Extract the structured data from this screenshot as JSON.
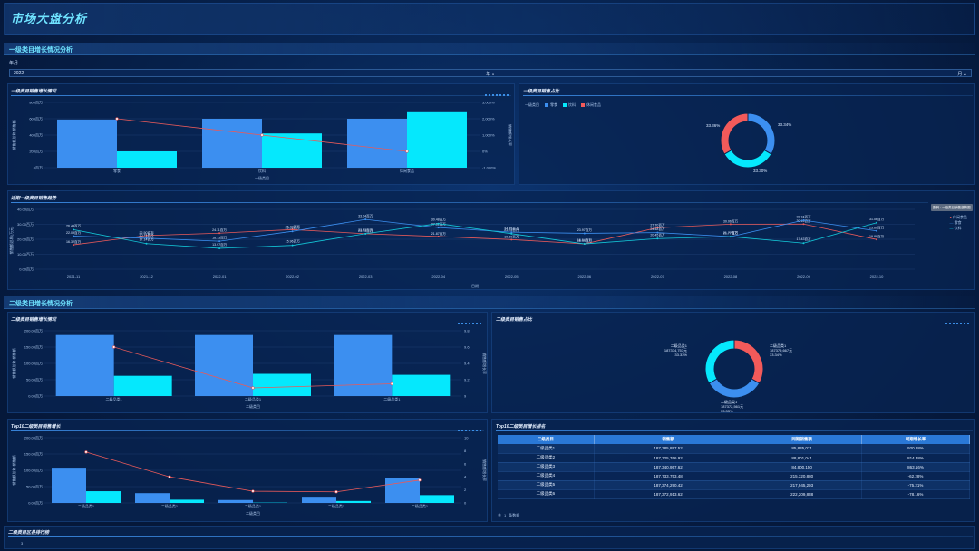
{
  "header": {
    "title": "市场大盘分析"
  },
  "section1": {
    "title": "一级类目增长情况分析"
  },
  "filter": {
    "label": "年月",
    "year_value": "2022",
    "year_unit": "年",
    "month_unit": "月"
  },
  "panel_l1_growth": {
    "title": "一级类目销售增长情况",
    "ylabel": "销售额总和·销售额",
    "y2label": "销售额增长率",
    "xlabel": "一级类目",
    "yticks": [
      "0百万",
      "200百万",
      "400百万",
      "600百万",
      "800百万"
    ],
    "y2ticks": [
      "-1,000%",
      "0%",
      "1,000%",
      "2,000%",
      "3,000%"
    ]
  },
  "panel_l1_share": {
    "title": "一级类目销售占比",
    "legend_title": "一级类目",
    "legend": [
      "零食",
      "饮料",
      "休闲食品"
    ],
    "labels": [
      "33.34%",
      "33.30%",
      "33.36%"
    ]
  },
  "panel_trend": {
    "title": "近期一级类目销售趋势",
    "ylabel": "销售额总和(万元)",
    "xlabel": "日期",
    "yticks": [
      "0.00百万",
      "10.00百万",
      "20.00百万",
      "30.00百万",
      "40.00百万"
    ],
    "tooltip": "图例 · 一级类目销售趋势图",
    "legend": [
      "休闲食品",
      "零食",
      "饮料"
    ]
  },
  "section2": {
    "title": "二级类目增长情况分析"
  },
  "panel_l2_growth": {
    "title": "二级类目销售增长情况",
    "ylabel": "销售额总和·销售额",
    "y2label": "销售额增长率",
    "xlabel": "二级类目",
    "yticks": [
      "0.00百万",
      "50.00百万",
      "100.00百万",
      "150.00百万",
      "200.00百万"
    ],
    "y2ticks": [
      "9",
      "9.2",
      "9.4",
      "9.6",
      "9.8"
    ]
  },
  "panel_l2_share": {
    "title": "二级类目销售占比",
    "labels": [
      {
        "name": "二级品类1",
        "value": "187374,757元",
        "pct": "33.33%"
      },
      {
        "name": "二级品类1",
        "value": "187379,667元",
        "pct": "33.34%"
      },
      {
        "name": "二级品类1",
        "value": "187372,561元",
        "pct": "33.33%"
      }
    ]
  },
  "panel_top10_growth": {
    "title": "Top10二级类目销售增长",
    "ylabel": "销售额总和·销售额",
    "y2label": "销售额增长率",
    "xlabel": "二级类目",
    "yticks": [
      "0.00百万",
      "50.00百万",
      "100.00百万",
      "150.00百万",
      "200.00百万"
    ],
    "y2ticks": [
      "0",
      "2",
      "4",
      "6",
      "8",
      "10"
    ]
  },
  "panel_top10_table": {
    "title": "Top10二级类目增长排名",
    "columns": [
      "二级类目",
      "销售额",
      "同期销售额",
      "同期增长率"
    ],
    "rows": [
      [
        "二级品类1",
        "187,385,897.52",
        "85,835,071",
        "920.88%"
      ],
      [
        "二级品类2",
        "187,325,766.92",
        "88,801,041",
        "814.38%"
      ],
      [
        "二级品类3",
        "187,340,957.62",
        "84,800,150",
        "863.16%"
      ],
      [
        "二级品类4",
        "187,733,753.48",
        "215,320,880",
        "-62.28%"
      ],
      [
        "二级品类5",
        "187,374,290.42",
        "217,945,293",
        "-75.21%"
      ],
      [
        "二级品类6",
        "187,372,913.62",
        "222,209,838",
        "-78.16%"
      ]
    ],
    "pagination": {
      "total_label": "共",
      "count": "1",
      "unit": "条数据"
    }
  },
  "section3": {
    "title": "二级类目区县排行榜"
  },
  "bottom_value": "3",
  "chart_data": [
    {
      "type": "bar",
      "title": "一级类目销售增长情况",
      "categories": [
        "零食",
        "饮料",
        "休闲食品"
      ],
      "series": [
        {
          "name": "销售额",
          "values": [
            590,
            600,
            600
          ]
        },
        {
          "name": "同期销售额",
          "values": [
            200,
            420,
            680
          ]
        },
        {
          "name": "销售额增长率",
          "values": [
            2000,
            1000,
            0
          ]
        }
      ],
      "ylim": [
        0,
        800
      ],
      "y2lim": [
        -1000,
        3000
      ]
    },
    {
      "type": "pie",
      "title": "一级类目销售占比",
      "labels": [
        "零食",
        "饮料",
        "休闲食品"
      ],
      "values": [
        33.34,
        33.3,
        33.36
      ]
    },
    {
      "type": "line",
      "title": "近期一级类目销售趋势",
      "x": [
        "2021-11",
        "2021-12",
        "2022-01",
        "2022-02",
        "2022-03",
        "2022-04",
        "2022-05",
        "2022-06",
        "2022-07",
        "2022-08",
        "2022-09",
        "2022-10"
      ],
      "series": [
        {
          "name": "休闲食品",
          "values": [
            16.32,
            22.5,
            24.11,
            26.49,
            23.73,
            21.87,
            19.8,
            16.94,
            27.7,
            30.06,
            30.16,
            19.88
          ]
        },
        {
          "name": "零食",
          "values": [
            22.09,
            20.71,
            18.73,
            25.33,
            33.24,
            27.82,
            24.75,
            23.97,
            24.48,
            21.77,
            32.74,
            25.6
          ]
        },
        {
          "name": "饮料",
          "values": [
            26.44,
            17.14,
            13.97,
            15.96,
            23.73,
            30.48,
            23.75,
            16.94,
            20.45,
            21.77,
            17.43,
            31.06
          ]
        }
      ],
      "ylim": [
        0,
        40
      ],
      "point_labels": [
        [
          "16.32百万",
          "22.50百万",
          "24.11百万",
          "26.49百万",
          "23.73百万",
          "21.87百万",
          "19.80百万",
          "16.94百万",
          "27.70百万",
          "30.06百万",
          "30.16百万",
          "19.88百万"
        ],
        [
          "22.09百万",
          "20.71百万",
          "18.73百万",
          "25.33百万",
          "33.24百万",
          "27.82百万",
          "24.75百万",
          "23.97百万",
          "24.48百万",
          "21.77百万",
          "32.74百万",
          "25.60百万"
        ],
        [
          "26.44百万",
          "17.14百万",
          "13.97百万",
          "15.96百万",
          "23.73百万",
          "30.48百万",
          "23.75百万",
          "16.94百万",
          "20.45百万",
          "21.77百万",
          "17.43百万",
          "31.06百万"
        ]
      ]
    },
    {
      "type": "bar",
      "title": "二级类目销售增长情况",
      "categories": [
        "二级品类1",
        "二级品类1",
        "二级品类1"
      ],
      "series": [
        {
          "name": "销售额",
          "values": [
            187,
            187,
            187
          ]
        },
        {
          "name": "同期销售额",
          "values": [
            62,
            68,
            65
          ]
        },
        {
          "name": "销售额增长率",
          "values": [
            9.6,
            9.1,
            9.15
          ]
        }
      ],
      "ylim": [
        0,
        200
      ],
      "y2lim": [
        9,
        9.8
      ]
    },
    {
      "type": "pie",
      "title": "二级类目销售占比",
      "labels": [
        "二级品类1",
        "二级品类1",
        "二级品类1"
      ],
      "values": [
        33.33,
        33.34,
        33.33
      ]
    },
    {
      "type": "bar",
      "title": "Top10二级类目销售增长",
      "categories": [
        "二级品类1",
        "二级品类1",
        "二级品类1",
        "二级品类1",
        "二级品类1"
      ],
      "series": [
        {
          "name": "销售额",
          "values": [
            108,
            30,
            9,
            19,
            75
          ]
        },
        {
          "name": "同期销售额",
          "values": [
            36,
            10,
            1,
            6,
            24
          ]
        },
        {
          "name": "销售额增长率",
          "values": [
            7.8,
            4,
            1.8,
            1.7,
            3.5
          ]
        }
      ],
      "ylim": [
        0,
        200
      ],
      "y2lim": [
        0,
        10
      ]
    }
  ],
  "colors": {
    "bar_blue": "#3c8ff0",
    "bar_cyan": "#05e8fd",
    "line_red": "#e85a5a",
    "donut_red": "#f25a5a",
    "title": "#6fe3ff"
  }
}
